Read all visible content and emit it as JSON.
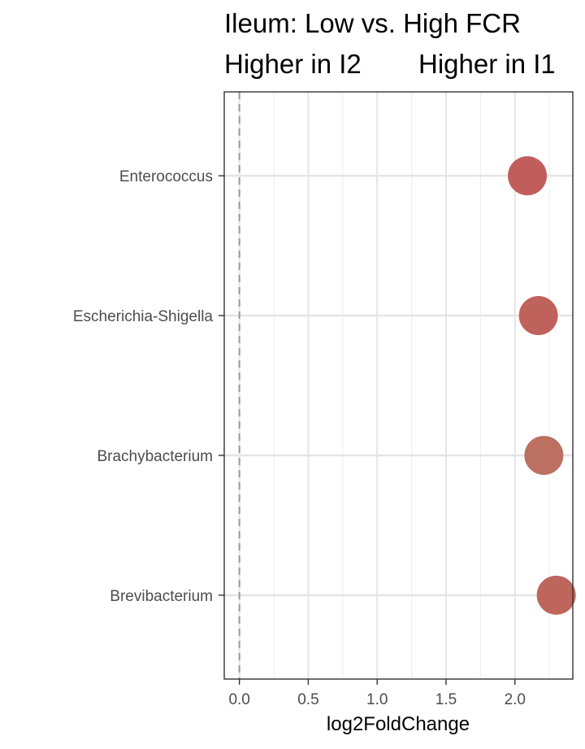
{
  "chart_data": {
    "type": "scatter",
    "title": "Ileum: Low vs. High FCR",
    "subtitle_left": "Higher in I2",
    "subtitle_right": "Higher in I1",
    "xlabel": "log2FoldChange",
    "ylabel": "",
    "xlim": [
      -0.11,
      2.42
    ],
    "x_ticks": [
      0.0,
      0.5,
      1.0,
      1.5,
      2.0
    ],
    "x_tick_labels": [
      "0.0",
      "0.5",
      "1.0",
      "1.5",
      "2.0"
    ],
    "reference_line_x": 0,
    "grid": true,
    "categories": [
      "Enterococcus",
      "Escherichia-Shigella",
      "Brachybacterium",
      "Brevibacterium"
    ],
    "points": [
      {
        "label": "Enterococcus",
        "x": 2.09,
        "color": "#c15e5c"
      },
      {
        "label": "Escherichia-Shigella",
        "x": 2.17,
        "color": "#c0625c"
      },
      {
        "label": "Brachybacterium",
        "x": 2.21,
        "color": "#bb7062"
      },
      {
        "label": "Brevibacterium",
        "x": 2.3,
        "color": "#be655c"
      }
    ]
  }
}
